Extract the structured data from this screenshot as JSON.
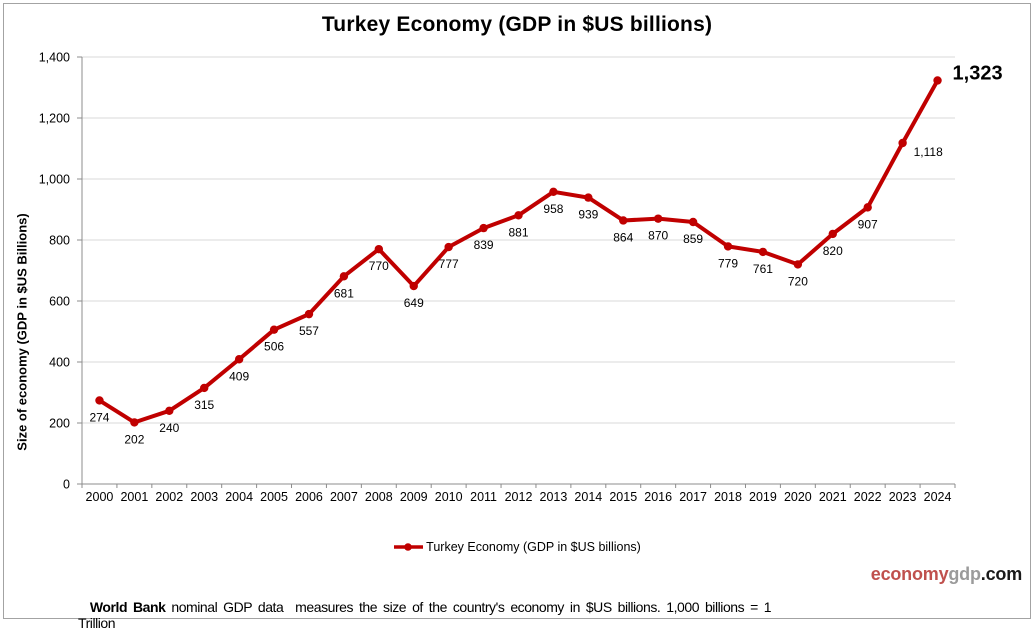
{
  "title": "Turkey Economy (GDP in $US billions)",
  "y_axis_title": "Size of economy (GDP in $US Billions)",
  "legend": {
    "label": "Turkey Economy (GDP in $US billions)"
  },
  "footer": {
    "brand_part1": "economy",
    "brand_part2": "gdp",
    "brand_part3": ".com",
    "source_bold": "World Bank",
    "source_rest": " nominal GDP data  measures the size of the country's economy in $US billions. 1,000 billions = 1 Trillion"
  },
  "colors": {
    "line": "#C00000",
    "marker": "#C00000",
    "grid": "#D9D9D9",
    "axis": "#8C8C8C",
    "label": "#000000",
    "brand_red": "#C0504D",
    "brand_gray": "#9B9B9B",
    "brand_black": "#1A1A1A"
  },
  "chart_data": {
    "type": "line",
    "title": "Turkey Economy (GDP in $US billions)",
    "xlabel": "",
    "ylabel": "Size of economy (GDP in $US Billions)",
    "series_name": "Turkey Economy (GDP in $US billions)",
    "categories": [
      "2000",
      "2001",
      "2002",
      "2003",
      "2004",
      "2005",
      "2006",
      "2007",
      "2008",
      "2009",
      "2010",
      "2011",
      "2012",
      "2013",
      "2014",
      "2015",
      "2016",
      "2017",
      "2018",
      "2019",
      "2020",
      "2021",
      "2022",
      "2023",
      "2024"
    ],
    "values": [
      274,
      202,
      240,
      315,
      409,
      506,
      557,
      681,
      770,
      649,
      777,
      839,
      881,
      958,
      939,
      864,
      870,
      859,
      779,
      761,
      720,
      820,
      907,
      1118,
      1323
    ],
    "ylim": [
      0,
      1400
    ],
    "ytick_step": 200,
    "grid": true,
    "legend_position": "bottom",
    "data_labels": true
  }
}
